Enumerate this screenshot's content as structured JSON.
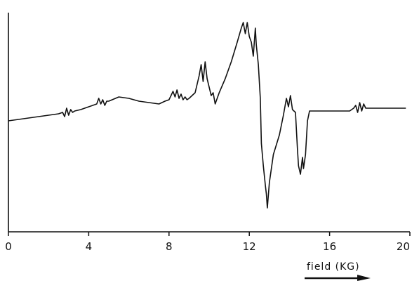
{
  "chart_data": {
    "type": "line",
    "title": "",
    "xlabel": "field (KG)",
    "ylabel": "",
    "xlim": [
      0,
      20
    ],
    "x_ticks": [
      "0",
      "4",
      "8",
      "12",
      "16",
      "20"
    ],
    "grid": false,
    "legend": "none",
    "colors": {
      "trace": "#111111",
      "axes": "#111111"
    },
    "series": [
      {
        "x": [
          0,
          0.5,
          1.0,
          1.5,
          2.0,
          2.5,
          2.7,
          2.8,
          2.9,
          3.0,
          3.1,
          3.2,
          3.3,
          3.6,
          4.0,
          4.4,
          4.5,
          4.6,
          4.7,
          4.8,
          4.9,
          5.0,
          5.5,
          6.0,
          6.5,
          7.0,
          7.5,
          7.8,
          8.0,
          8.1,
          8.2,
          8.3,
          8.4,
          8.5,
          8.6,
          8.7,
          8.8,
          8.9,
          9.0,
          9.3,
          9.5,
          9.6,
          9.7,
          9.8,
          9.9,
          10.0,
          10.1,
          10.2,
          10.3,
          10.5,
          10.8,
          11.1,
          11.4,
          11.6,
          11.7,
          11.8,
          11.9,
          12.0,
          12.1,
          12.2,
          12.3,
          12.35,
          12.45,
          12.55,
          12.6,
          12.7,
          12.8,
          12.85,
          12.9,
          13.0,
          13.2,
          13.5,
          13.7,
          13.85,
          13.95,
          14.05,
          14.15,
          14.3,
          14.4,
          14.45,
          14.55,
          14.65,
          14.7,
          14.8,
          14.9,
          15.0,
          15.5,
          16.0,
          16.5,
          17.0,
          17.2,
          17.3,
          17.4,
          17.5,
          17.6,
          17.7,
          17.8,
          18.0,
          18.5,
          19.0,
          19.5,
          19.8
        ],
        "y": [
          0.0,
          0.05,
          0.1,
          0.15,
          0.2,
          0.25,
          0.3,
          0.15,
          0.45,
          0.2,
          0.4,
          0.3,
          0.35,
          0.4,
          0.5,
          0.6,
          0.8,
          0.6,
          0.75,
          0.55,
          0.7,
          0.7,
          0.85,
          0.8,
          0.7,
          0.65,
          0.6,
          0.7,
          0.75,
          0.9,
          1.05,
          0.85,
          1.1,
          0.8,
          0.95,
          0.75,
          0.85,
          0.75,
          0.8,
          1.0,
          1.6,
          2.0,
          1.4,
          2.1,
          1.5,
          1.2,
          0.9,
          1.0,
          0.6,
          1.0,
          1.5,
          2.1,
          2.8,
          3.3,
          3.5,
          3.1,
          3.5,
          3.0,
          2.8,
          2.3,
          3.3,
          2.7,
          2.0,
          0.8,
          -0.8,
          -1.6,
          -2.3,
          -2.6,
          -3.1,
          -2.2,
          -1.2,
          -0.5,
          0.2,
          0.8,
          0.5,
          0.9,
          0.4,
          0.3,
          -1.0,
          -1.6,
          -1.9,
          -1.3,
          -1.7,
          -1.2,
          0.0,
          0.35,
          0.35,
          0.35,
          0.35,
          0.35,
          0.45,
          0.55,
          0.3,
          0.65,
          0.35,
          0.6,
          0.45,
          0.45,
          0.45,
          0.45,
          0.45,
          0.45
        ]
      }
    ]
  }
}
